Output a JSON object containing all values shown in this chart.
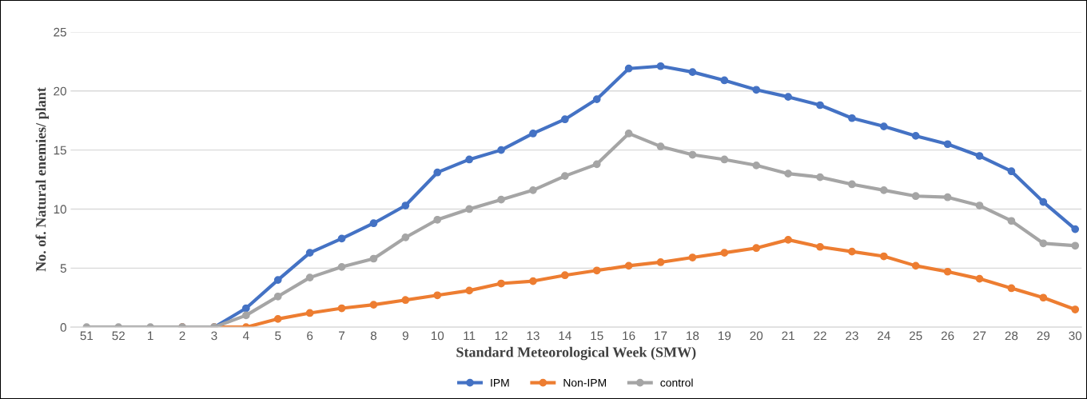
{
  "chart_data": {
    "type": "line",
    "xlabel": "Standard Meteorological Week (SMW)",
    "ylabel": "No. of. Natural enemies/ plant",
    "categories": [
      "51",
      "52",
      "1",
      "2",
      "3",
      "4",
      "5",
      "6",
      "7",
      "8",
      "9",
      "10",
      "11",
      "12",
      "13",
      "14",
      "15",
      "16",
      "17",
      "18",
      "19",
      "20",
      "21",
      "22",
      "23",
      "24",
      "25",
      "26",
      "27",
      "28",
      "29",
      "30"
    ],
    "series": [
      {
        "name": "IPM",
        "color": "#4472c4",
        "values": [
          null,
          null,
          null,
          0,
          0,
          1.6,
          4.0,
          6.3,
          7.5,
          8.8,
          10.3,
          13.1,
          14.2,
          15.0,
          16.4,
          17.6,
          19.3,
          21.9,
          22.1,
          21.6,
          20.9,
          20.1,
          19.5,
          18.8,
          17.7,
          17.0,
          16.2,
          15.5,
          14.5,
          13.2,
          10.6,
          8.3
        ]
      },
      {
        "name": "Non-IPM",
        "color": "#ed7d31",
        "values": [
          null,
          null,
          null,
          0,
          0,
          0,
          0.7,
          1.2,
          1.6,
          1.9,
          2.3,
          2.7,
          3.1,
          3.7,
          3.9,
          4.4,
          4.8,
          5.2,
          5.5,
          5.9,
          6.3,
          6.7,
          7.4,
          6.8,
          6.4,
          6.0,
          5.2,
          4.7,
          4.1,
          3.3,
          2.5,
          1.5
        ]
      },
      {
        "name": "control",
        "color": "#a5a5a5",
        "values": [
          0,
          0,
          0,
          0,
          0,
          1.0,
          2.6,
          4.2,
          5.1,
          5.8,
          7.6,
          9.1,
          10.0,
          10.8,
          11.6,
          12.8,
          13.8,
          16.4,
          15.3,
          14.6,
          14.2,
          13.7,
          13.0,
          12.7,
          12.1,
          11.6,
          11.1,
          11.0,
          10.3,
          9.0,
          7.1,
          6.9
        ]
      }
    ],
    "ylim": [
      0,
      25
    ],
    "yticks": [
      0,
      5,
      10,
      15,
      20,
      25
    ],
    "grid": "y",
    "legend": "bottom",
    "marker": "circle",
    "line_style": "solid"
  }
}
